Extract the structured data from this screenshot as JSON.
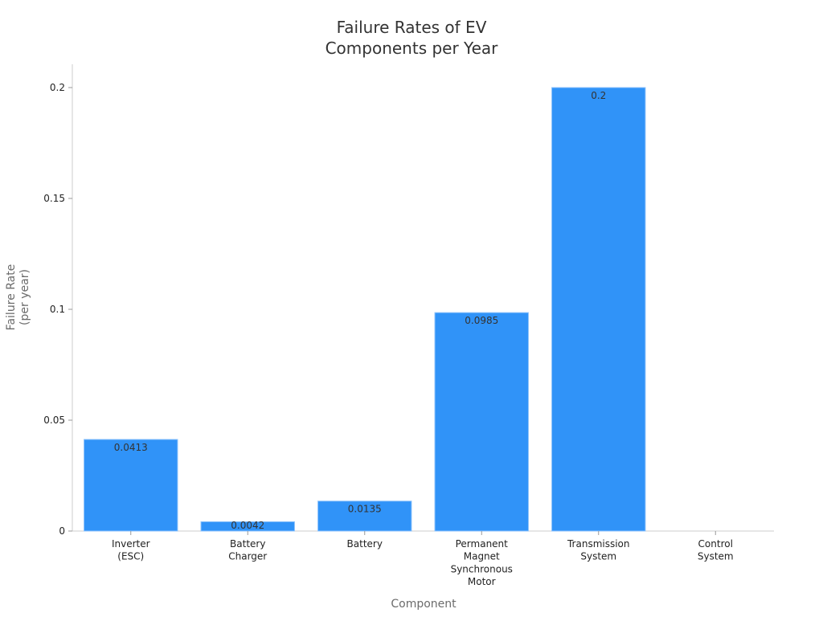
{
  "chart_data": {
    "type": "bar",
    "title": [
      "Failure Rates of EV",
      "Components per Year"
    ],
    "xlabel": "Component",
    "ylabel": [
      "Failure Rate",
      "(per year)"
    ],
    "categories": [
      [
        "Inverter",
        "(ESC)"
      ],
      [
        "Battery",
        "Charger"
      ],
      [
        "Battery"
      ],
      [
        "Permanent",
        "Magnet",
        "Synchronous",
        "Motor"
      ],
      [
        "Transmission",
        "System"
      ],
      [
        "Control",
        "System"
      ]
    ],
    "values": [
      0.0413,
      0.0042,
      0.0135,
      0.0985,
      0.2,
      0
    ],
    "data_labels": [
      "0.0413",
      "0.0042",
      "0.0135",
      "0.0985",
      "0.2",
      ""
    ],
    "yticks": [
      0,
      0.05,
      0.1,
      0.15,
      0.2
    ],
    "ytick_labels": [
      "0",
      "0.05",
      "0.1",
      "0.15",
      "0.2"
    ],
    "ylim": [
      0,
      0.21
    ],
    "grid": false,
    "bar_color": "#3093f8",
    "axis_color": "#cccccc"
  }
}
